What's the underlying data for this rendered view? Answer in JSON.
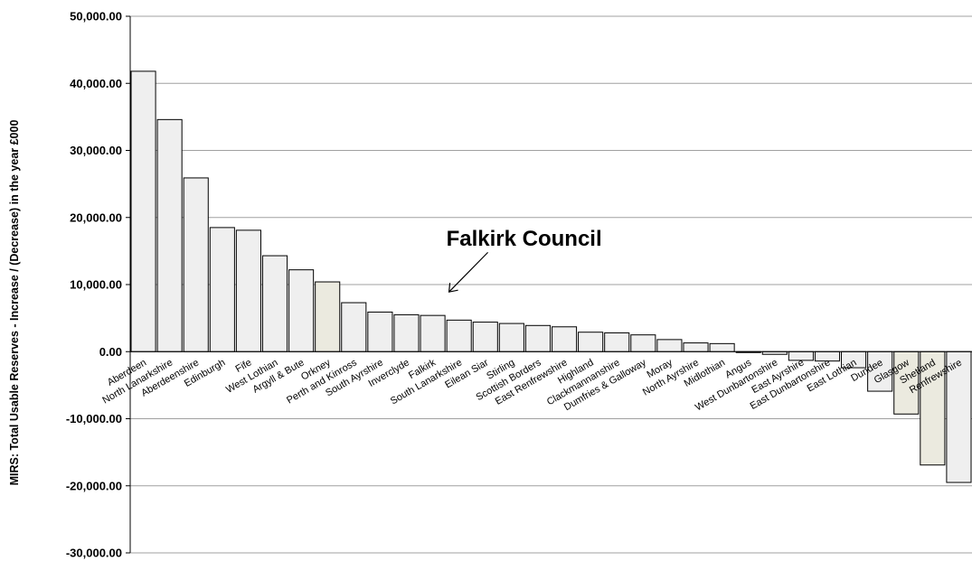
{
  "chart_data": {
    "type": "bar",
    "ylabel": "MIRS: Total Usable Reserves - Increase / (Decrease) in the year £000",
    "ylim": [
      -30000,
      50000
    ],
    "yticks": [
      {
        "value": 50000,
        "label": "50,000.00"
      },
      {
        "value": 40000,
        "label": "40,000.00"
      },
      {
        "value": 30000,
        "label": "30,000.00"
      },
      {
        "value": 20000,
        "label": "20,000.00"
      },
      {
        "value": 10000,
        "label": "10,000.00"
      },
      {
        "value": 0,
        "label": "0.00"
      },
      {
        "value": -10000,
        "label": "-10,000.00"
      },
      {
        "value": -20000,
        "label": "-20,000.00"
      },
      {
        "value": -30000,
        "label": "-30,000.00"
      }
    ],
    "grid": true,
    "annotation": {
      "text": "Falkirk Council",
      "target": "Falkirk"
    },
    "colors": {
      "default": "#efefef",
      "highlight": "#ebeadf",
      "gridline": "#a0a0a0",
      "border": "#000000"
    },
    "categories": [
      "Aberdeen",
      "North Lanarkshire",
      "Aberdeenshire",
      "Edinburgh",
      "Fife",
      "West Lothian",
      "Argyll & Bute",
      "Orkney",
      "Perth and Kinross",
      "South Ayrshire",
      "Inverclyde",
      "Falkirk",
      "South Lanarkshire",
      "Eilean Siar",
      "Stirling",
      "Scottish Borders",
      "East Renfrewshire",
      "Highland",
      "Clackmannanshire",
      "Dumfries & Galloway",
      "Moray",
      "North Ayrshire",
      "Midlothian",
      "Angus",
      "West Dunbartonshire",
      "East Ayrshire",
      "East Dunbartonshire",
      "East Lothian",
      "Dundee",
      "Glasgow",
      "Shetland",
      "Renfrewshire"
    ],
    "values": [
      41800,
      34600,
      25900,
      18500,
      18100,
      14300,
      12200,
      10400,
      7300,
      5900,
      5500,
      5400,
      4700,
      4400,
      4200,
      3900,
      3700,
      2900,
      2800,
      2500,
      1800,
      1300,
      1200,
      -100,
      -400,
      -1300,
      -1400,
      -2400,
      -5900,
      -9300,
      -16900,
      -19500
    ],
    "highlighted": [
      "Orkney",
      "Glasgow",
      "Shetland"
    ]
  }
}
